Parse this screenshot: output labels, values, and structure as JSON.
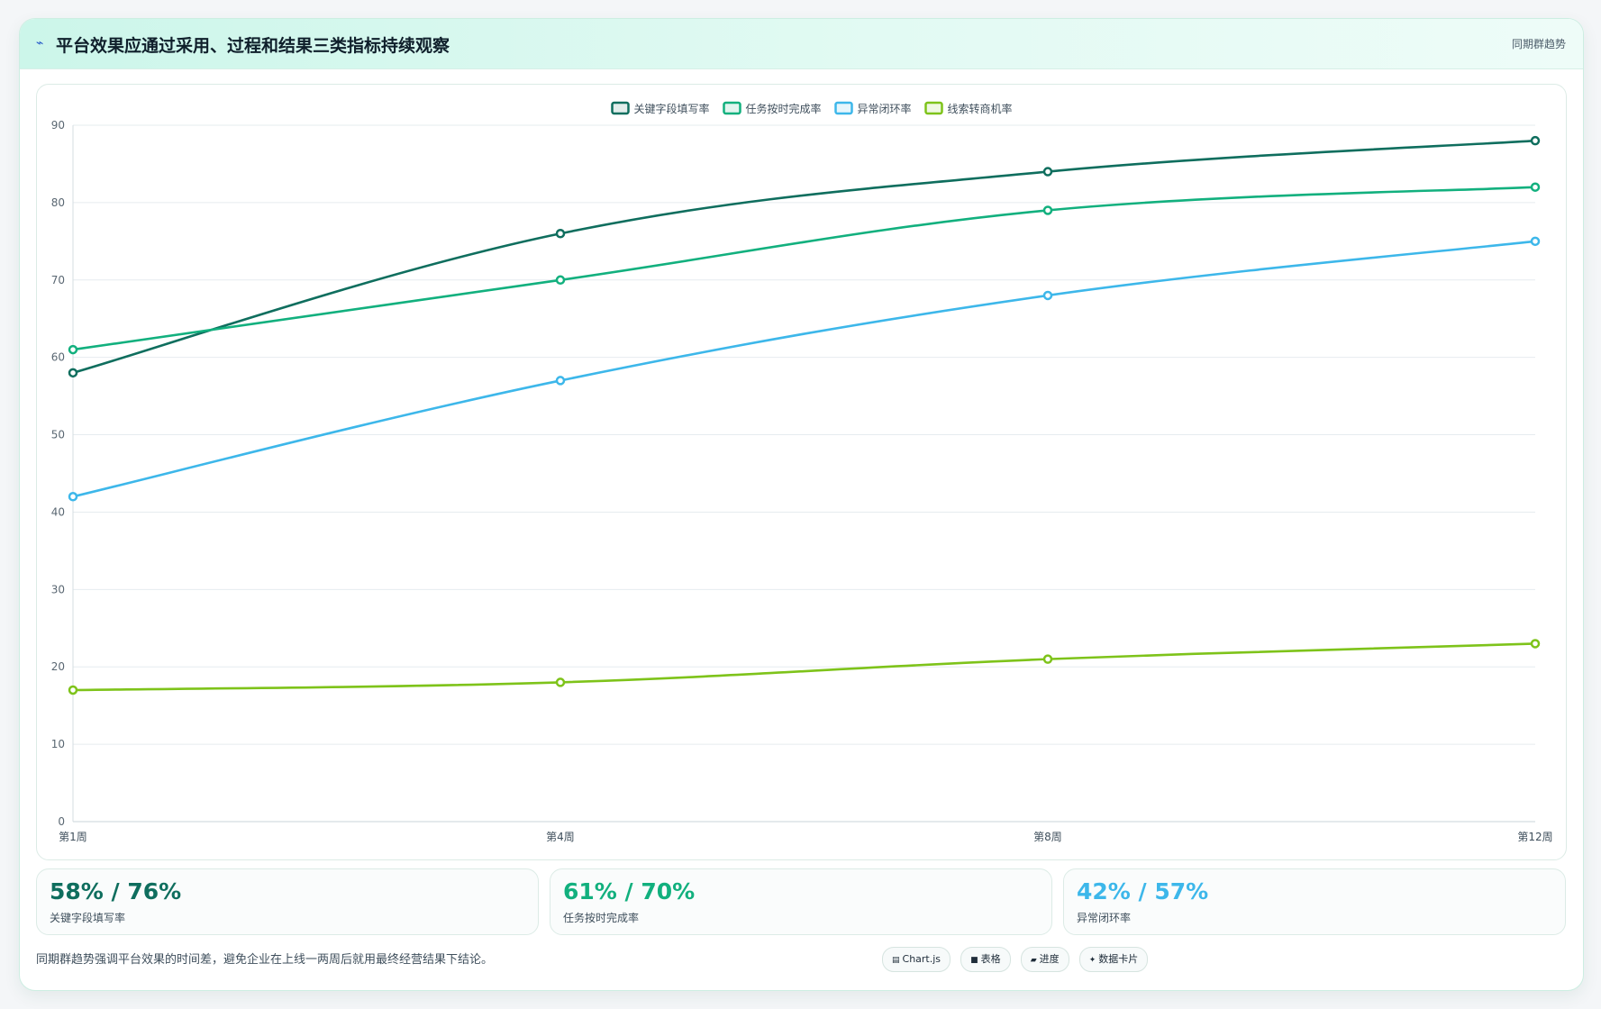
{
  "header": {
    "icon": "trend-icon",
    "title": "平台效果应通过采用、过程和结果三类指标持续观察",
    "tag": "同期群趋势"
  },
  "chart_data": {
    "type": "line",
    "title": "",
    "xlabel": "",
    "ylabel": "",
    "categories": [
      "第1周",
      "第4周",
      "第8周",
      "第12周"
    ],
    "ylim": [
      0,
      90
    ],
    "yticks": [
      0,
      10,
      20,
      30,
      40,
      50,
      60,
      70,
      80,
      90
    ],
    "grid": true,
    "legend_position": "top-center",
    "series": [
      {
        "name": "关键字段填写率",
        "color": "#0f6e5e",
        "values": [
          58,
          76,
          84,
          88
        ]
      },
      {
        "name": "任务按时完成率",
        "color": "#12b07e",
        "values": [
          61,
          70,
          79,
          82
        ]
      },
      {
        "name": "异常闭环率",
        "color": "#3db7ea",
        "values": [
          42,
          57,
          68,
          75
        ]
      },
      {
        "name": "线索转商机率",
        "color": "#7ec31a",
        "values": [
          17,
          18,
          21,
          23
        ]
      }
    ]
  },
  "stats": [
    {
      "value": "58% / 76%",
      "label": "关键字段填写率",
      "color": "#0f6e5e"
    },
    {
      "value": "61% / 70%",
      "label": "任务按时完成率",
      "color": "#12b07e"
    },
    {
      "value": "42% / 57%",
      "label": "异常闭环率",
      "color": "#3db7ea"
    }
  ],
  "footer": {
    "note": "同期群趋势强调平台效果的时间差，避免企业在上线一两周后就用最终经营结果下结论。",
    "pills": [
      {
        "icon": "▤",
        "icon_name": "chart-icon",
        "label": "Chart.js"
      },
      {
        "icon": "■",
        "icon_name": "table-icon",
        "label": "表格"
      },
      {
        "icon": "▰",
        "icon_name": "progress-icon",
        "label": "进度"
      },
      {
        "icon": "✦",
        "icon_name": "card-icon",
        "label": "数据卡片"
      }
    ]
  }
}
